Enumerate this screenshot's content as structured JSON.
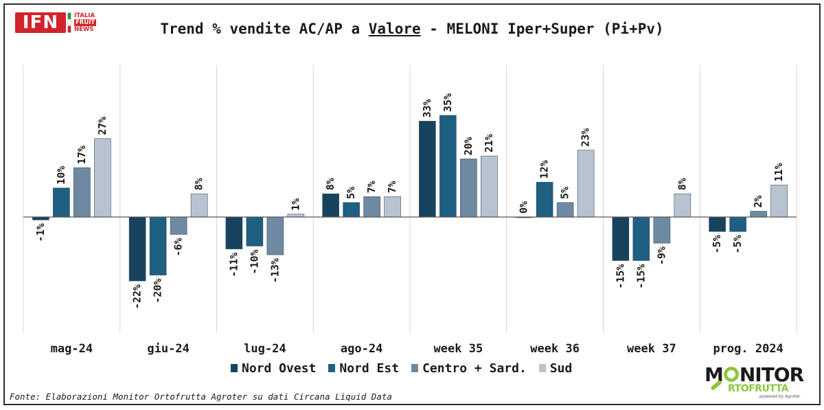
{
  "header": {
    "logo": {
      "main": "IFN",
      "line1": "ITALIA",
      "line2": "FRUIT",
      "line3": "NEWS"
    },
    "title_pre": "Trend % vendite AC/AP a ",
    "title_underlined": "Valore",
    "title_post": " - MELONI Iper+Super (Pi+Pv)"
  },
  "footer": {
    "source": "Fonte: Elaborazioni Monitor Ortofrutta Agroter su dati Circana Liquid Data",
    "logo": {
      "main_pre": "M",
      "main_post": "NITOR",
      "sub": "RTOFRUTTA",
      "tiny": "powered by Agroter"
    }
  },
  "chart_data": {
    "type": "bar",
    "categories": [
      "mag-24",
      "giu-24",
      "lug-24",
      "ago-24",
      "week 35",
      "week 36",
      "week 37",
      "prog. 2024"
    ],
    "series": [
      {
        "name": "Nord Ovest",
        "color": "#17435f",
        "values": [
          -1,
          -22,
          -11,
          8,
          33,
          0,
          -15,
          -5
        ],
        "labels": [
          "-1%",
          "-22%",
          "-11%",
          "8%",
          "33%",
          "0%",
          "-15%",
          "-5%"
        ]
      },
      {
        "name": "Nord Est",
        "color": "#1f5f82",
        "values": [
          10,
          -20,
          -10,
          5,
          35,
          12,
          -15,
          -5
        ],
        "labels": [
          "10%",
          "-20%",
          "-10%",
          "5%",
          "35%",
          "12%",
          "-15%",
          "-5%"
        ]
      },
      {
        "name": "Centro + Sard.",
        "color": "#6e8aa3",
        "values": [
          17,
          -6,
          -13,
          7,
          20,
          5,
          -9,
          2
        ],
        "labels": [
          "17%",
          "-6%",
          "-13%",
          "7%",
          "20%",
          "5%",
          "-9%",
          "2%"
        ]
      },
      {
        "name": "Sud",
        "color": "#b7c3d0",
        "values": [
          27,
          8,
          1,
          7,
          21,
          23,
          8,
          11
        ],
        "labels": [
          "27%",
          "8%",
          "1%",
          "7%",
          "21%",
          "23%",
          "8%",
          "11%"
        ]
      }
    ],
    "ylim": [
      -32,
      40
    ],
    "legend_position": "bottom",
    "grid": false
  }
}
